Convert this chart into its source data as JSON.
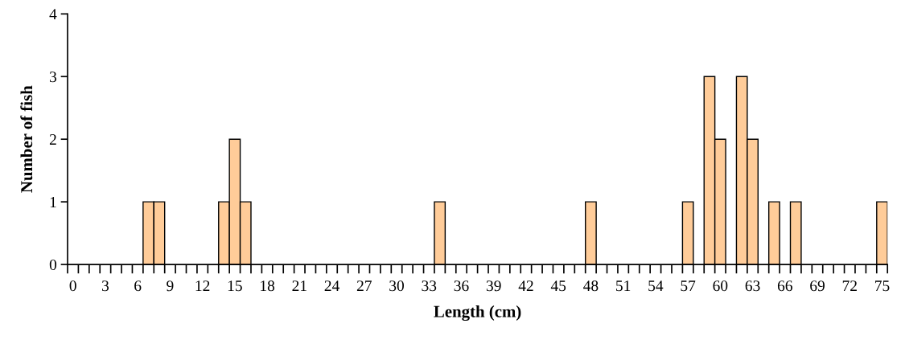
{
  "chart_data": {
    "type": "bar",
    "xlabel": "Length (cm)",
    "ylabel": "Number of fish",
    "categories": [
      "0",
      null,
      null,
      "3",
      null,
      null,
      "6",
      null,
      null,
      "9",
      null,
      null,
      "12",
      null,
      null,
      "15",
      null,
      null,
      "18",
      null,
      null,
      "21",
      null,
      null,
      "24",
      null,
      null,
      "27",
      null,
      null,
      "30",
      null,
      null,
      "33",
      null,
      null,
      "36",
      null,
      null,
      "39",
      null,
      null,
      "42",
      null,
      null,
      "45",
      null,
      null,
      "48",
      null,
      null,
      "51",
      null,
      null,
      "54",
      null,
      null,
      "57",
      null,
      null,
      "60",
      null,
      null,
      "63",
      null,
      null,
      "66",
      null,
      null,
      "69",
      null,
      null,
      "72",
      null,
      null,
      "75"
    ],
    "values": [
      0,
      0,
      0,
      0,
      0,
      0,
      0,
      1,
      1,
      0,
      0,
      0,
      0,
      0,
      1,
      2,
      1,
      0,
      0,
      0,
      0,
      0,
      0,
      0,
      0,
      0,
      0,
      0,
      0,
      0,
      0,
      0,
      0,
      0,
      1,
      0,
      0,
      0,
      0,
      0,
      0,
      0,
      0,
      0,
      0,
      0,
      0,
      0,
      1,
      0,
      0,
      0,
      0,
      0,
      0,
      0,
      0,
      1,
      0,
      3,
      2,
      0,
      3,
      2,
      0,
      1,
      0,
      1,
      0,
      0,
      0,
      0,
      0,
      0,
      0,
      1
    ],
    "color": "#ffcc99",
    "ylim": [
      0,
      4
    ],
    "yticks": [
      0,
      1,
      2,
      3,
      4
    ],
    "grid": false,
    "legend": false
  }
}
